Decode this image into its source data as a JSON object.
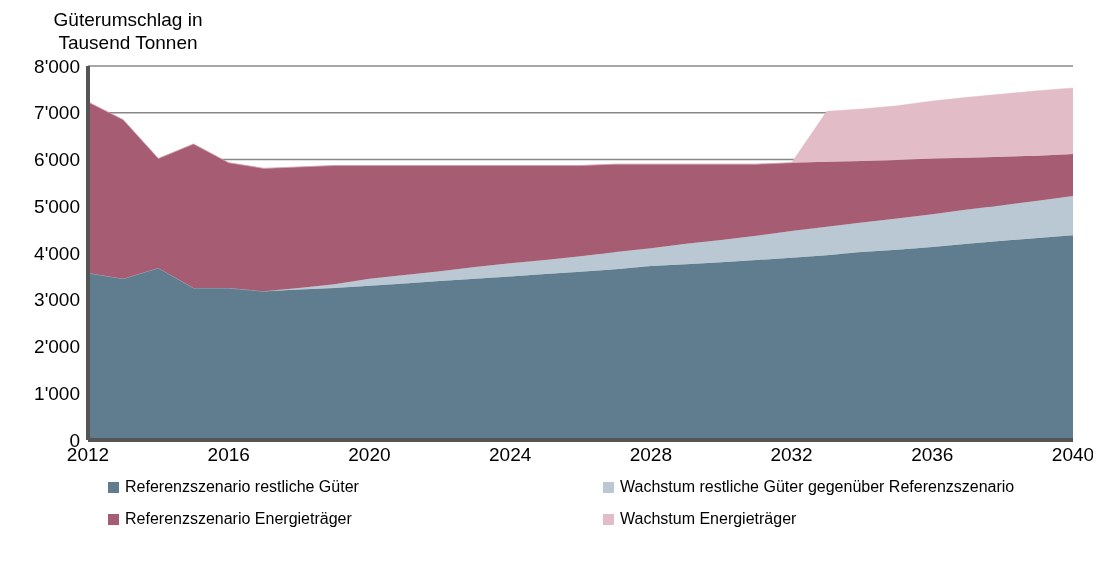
{
  "chart_data": {
    "type": "area",
    "stacked": true,
    "ylabel": "Güterumschlag in Tausend Tonnen",
    "x": [
      2012,
      2013,
      2014,
      2015,
      2016,
      2017,
      2018,
      2019,
      2020,
      2021,
      2022,
      2023,
      2024,
      2025,
      2026,
      2027,
      2028,
      2029,
      2030,
      2031,
      2032,
      2033,
      2034,
      2035,
      2036,
      2037,
      2038,
      2039,
      2040
    ],
    "series": [
      {
        "name": "Referenzszenario restliche Güter",
        "color": "#5f7d8f",
        "values": [
          3570,
          3450,
          3680,
          3250,
          3250,
          3180,
          3220,
          3250,
          3300,
          3350,
          3400,
          3450,
          3500,
          3550,
          3600,
          3650,
          3720,
          3760,
          3800,
          3850,
          3900,
          3950,
          4020,
          4070,
          4130,
          4200,
          4260,
          4320,
          4380
        ]
      },
      {
        "name": "Wachstum restliche Güter gegenüber Referenzszenario",
        "color": "#b9c8d2",
        "values": [
          0,
          0,
          0,
          0,
          0,
          0,
          30,
          80,
          150,
          180,
          210,
          250,
          280,
          300,
          330,
          370,
          380,
          440,
          480,
          520,
          570,
          610,
          630,
          670,
          700,
          730,
          760,
          800,
          840
        ]
      },
      {
        "name": "Referenzszenario Energieträger",
        "color": "#a65c72",
        "values": [
          3660,
          3400,
          2340,
          3080,
          2680,
          2630,
          2590,
          2540,
          2420,
          2340,
          2260,
          2170,
          2090,
          2020,
          1940,
          1880,
          1800,
          1700,
          1620,
          1530,
          1460,
          1390,
          1320,
          1250,
          1190,
          1110,
          1040,
          960,
          900
        ]
      },
      {
        "name": "Wachstum Energieträger",
        "color": "#e2bcc7",
        "values": [
          0,
          0,
          0,
          0,
          0,
          0,
          0,
          0,
          0,
          0,
          0,
          0,
          0,
          0,
          0,
          0,
          0,
          0,
          0,
          0,
          0,
          1080,
          1110,
          1160,
          1230,
          1290,
          1340,
          1390,
          1410
        ]
      }
    ],
    "xlim": [
      2012,
      2040
    ],
    "xticks": [
      2012,
      2016,
      2020,
      2024,
      2028,
      2032,
      2036,
      2040
    ],
    "ylim": [
      0,
      8000
    ],
    "yticks": [
      0,
      {
        "value": 1000,
        "label": "1'000"
      },
      {
        "value": 2000,
        "label": "2'000"
      },
      {
        "value": 3000,
        "label": "3'000"
      },
      {
        "value": 4000,
        "label": "4'000"
      },
      {
        "value": 5000,
        "label": "5'000"
      },
      {
        "value": 6000,
        "label": "6'000"
      },
      {
        "value": 7000,
        "label": "7'000"
      },
      {
        "value": 8000,
        "label": "8'000"
      }
    ],
    "grid": "y",
    "legend": "bottom"
  }
}
